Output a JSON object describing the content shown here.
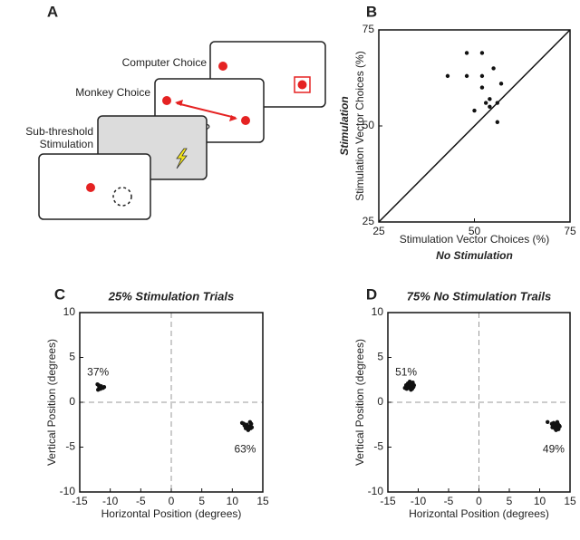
{
  "panel_labels": [
    "A",
    "B",
    "C",
    "D"
  ],
  "diagram": {
    "computer_label": "Computer Choice",
    "monkey_label": "Monkey Choice",
    "stimulation_label": [
      "Sub-threshold",
      "Stimulation"
    ],
    "question": "?"
  },
  "chart_data": [
    {
      "type": "scatter",
      "xlabel": "Stimulation Vector Choices (%)",
      "xlabel_emphasis": "No Stimulation",
      "ylabel": "Stimulation Vector Choices (%)",
      "ylabel_emphasis": "Stimulation",
      "xlim": [
        25,
        75
      ],
      "ylim": [
        25,
        75
      ],
      "xticks": [
        25,
        50,
        75
      ],
      "yticks": [
        25,
        50,
        75
      ],
      "identity_line": true,
      "color": "#111",
      "x": [
        43,
        48,
        52,
        48,
        52,
        55,
        52,
        54,
        56,
        57,
        54,
        50,
        56,
        53
      ],
      "y": [
        63,
        69,
        69,
        63,
        63,
        65,
        60,
        57,
        56,
        61,
        55,
        54,
        51,
        56
      ]
    },
    {
      "type": "scatter",
      "title": "25% Stimulation Trials",
      "xlabel": "Horizontal Position (degrees)",
      "ylabel": "Vertical Position (degrees)",
      "xlim": [
        -15,
        15
      ],
      "ylim": [
        -10,
        10
      ],
      "xticks": [
        -15,
        -10,
        -5,
        0,
        5,
        10,
        15
      ],
      "yticks": [
        -10,
        -5,
        0,
        5,
        10
      ],
      "zero_lines": true,
      "color": "#111",
      "x": [
        -12.1,
        -11.8,
        -11.5,
        -11.2,
        -12.0,
        -11.6,
        -11.0,
        -11.9,
        11.6,
        12.0,
        12.4,
        12.8,
        13.1,
        12.2,
        12.6,
        13.0,
        12.9,
        11.9,
        12.5,
        13.2
      ],
      "y": [
        2.0,
        1.7,
        1.8,
        1.6,
        1.4,
        1.5,
        1.7,
        1.9,
        -2.3,
        -2.6,
        -2.5,
        -2.7,
        -2.4,
        -2.9,
        -3.1,
        -2.9,
        -2.2,
        -2.4,
        -2.7,
        -2.8
      ],
      "annotations": [
        {
          "text": "37%",
          "x": -12,
          "y": 3.3
        },
        {
          "text": "63%",
          "x": 12.1,
          "y": -5.3
        }
      ]
    },
    {
      "type": "scatter",
      "title": "75% No Stimulation Trails",
      "xlabel": "Horizontal Position (degrees)",
      "ylabel": "Vertical Position (degrees)",
      "xlim": [
        -15,
        15
      ],
      "ylim": [
        -10,
        10
      ],
      "xticks": [
        -15,
        -10,
        -5,
        0,
        5,
        10,
        15
      ],
      "yticks": [
        -10,
        -5,
        0,
        5,
        10
      ],
      "zero_lines": true,
      "color": "#111",
      "x": [
        -12.0,
        -11.7,
        -11.4,
        -11.1,
        -10.8,
        -11.9,
        -11.5,
        -11.2,
        -10.9,
        -11.6,
        -11.3,
        -12.2,
        -11.0,
        -11.4,
        -11.8,
        -10.7,
        11.3,
        12.0,
        12.3,
        12.6,
        12.9,
        13.2,
        12.1,
        12.5,
        12.8,
        13.1,
        12.4,
        12.7,
        13.0,
        12.2,
        12.6,
        13.3
      ],
      "y": [
        1.9,
        2.1,
        2.0,
        1.8,
        1.7,
        1.5,
        1.6,
        1.4,
        2.2,
        1.8,
        1.9,
        1.6,
        1.5,
        2.3,
        1.7,
        1.9,
        -2.2,
        -2.4,
        -2.3,
        -2.5,
        -2.2,
        -2.6,
        -2.8,
        -2.9,
        -2.7,
        -3.0,
        -2.6,
        -3.1,
        -2.4,
        -2.6,
        -2.8,
        -2.7
      ],
      "annotations": [
        {
          "text": "51%",
          "x": -12,
          "y": 3.3
        },
        {
          "text": "49%",
          "x": 12.3,
          "y": -5.3
        }
      ]
    }
  ]
}
